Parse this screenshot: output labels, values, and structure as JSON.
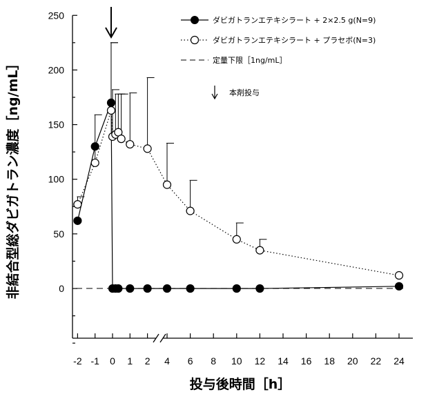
{
  "chart_data": {
    "type": "line",
    "xlabel": "投与後時間［h］",
    "ylabel": "非結合型総ダビガトラン濃度［ng/mL］",
    "ylim": [
      -50,
      250
    ],
    "yticks": [
      0,
      50,
      100,
      150,
      200,
      250
    ],
    "xticks": [
      {
        "label": "-2",
        "x": -2
      },
      {
        "label": "-1",
        "x": -1
      },
      {
        "label": "0",
        "x": 0
      },
      {
        "label": "1",
        "x": 1
      },
      {
        "label": "2",
        "x": 2
      },
      {
        "label": "4",
        "x": 4
      },
      {
        "label": "6",
        "x": 6
      },
      {
        "label": "8",
        "x": 8
      },
      {
        "label": "10",
        "x": 10
      },
      {
        "label": "12",
        "x": 12
      },
      {
        "label": "14",
        "x": 14
      },
      {
        "label": "16",
        "x": 16
      },
      {
        "label": "18",
        "x": 18
      },
      {
        "label": "20",
        "x": 20
      },
      {
        "label": "22",
        "x": 22
      },
      {
        "label": "24",
        "x": 24
      }
    ],
    "x_axis_break_between": [
      2,
      4
    ],
    "series": [
      {
        "name": "ダビガトランエテキシラート + 2×2.5 g(N=9)",
        "marker": "filled-circle",
        "line": "solid",
        "color": "#000000",
        "points": [
          {
            "x": -2,
            "y": 62,
            "err": 0
          },
          {
            "x": -1,
            "y": 130,
            "err": 0
          },
          {
            "x": -0.08,
            "y": 170,
            "err": 55
          },
          {
            "x": 0,
            "y": 0
          },
          {
            "x": 0.17,
            "y": 0
          },
          {
            "x": 0.33,
            "y": 0
          },
          {
            "x": 1,
            "y": 0
          },
          {
            "x": 2,
            "y": 0
          },
          {
            "x": 4,
            "y": 0
          },
          {
            "x": 6,
            "y": 0
          },
          {
            "x": 10,
            "y": 0
          },
          {
            "x": 12,
            "y": 0
          },
          {
            "x": 24,
            "y": 2
          }
        ]
      },
      {
        "name": "ダビガトランエテキシラート + プラセボ(N=3)",
        "marker": "open-circle",
        "line": "dotted",
        "color": "#000000",
        "points": [
          {
            "x": -2,
            "y": 77,
            "err": 7
          },
          {
            "x": -1,
            "y": 115,
            "err": 44
          },
          {
            "x": -0.08,
            "y": 163,
            "err": 62
          },
          {
            "x": 0,
            "y": 139,
            "err": 43
          },
          {
            "x": 0.17,
            "y": 141,
            "err": 37
          },
          {
            "x": 0.33,
            "y": 143,
            "err": 35
          },
          {
            "x": 0.5,
            "y": 137,
            "err": 41
          },
          {
            "x": 1,
            "y": 132,
            "err": 47
          },
          {
            "x": 2,
            "y": 128,
            "err": 65
          },
          {
            "x": 4,
            "y": 95,
            "err": 38
          },
          {
            "x": 6,
            "y": 71,
            "err": 28
          },
          {
            "x": 10,
            "y": 45,
            "err": 15
          },
          {
            "x": 12,
            "y": 35,
            "err": 10
          },
          {
            "x": 24,
            "y": 12,
            "err": 0
          }
        ]
      }
    ],
    "reference_line": {
      "name": "定量下限［1ng/mL］",
      "y": 1,
      "style": "dashed"
    },
    "annotation": {
      "label": "本剤投与",
      "x": 0,
      "marker": "down-arrow"
    },
    "legend": {
      "placement": "top-right"
    },
    "grid": false
  }
}
